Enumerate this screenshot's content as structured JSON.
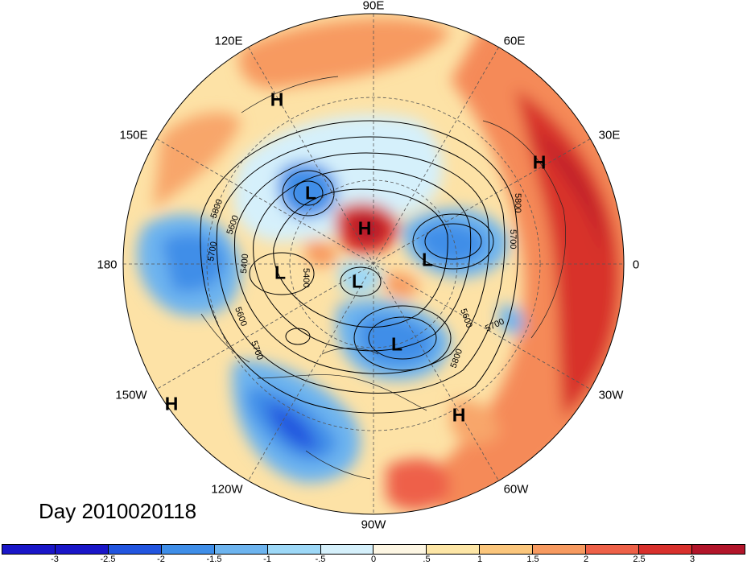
{
  "title": "Day 2010020118",
  "longitude_labels": {
    "top": "90E",
    "top_left": "120E",
    "top_right": "60E",
    "upper_left": "150E",
    "upper_right": "30E",
    "left": "180",
    "right": "0",
    "lower_left": "150W",
    "lower_right": "30W",
    "bottom_left": "120W",
    "bottom_right": "60W",
    "bottom": "90W"
  },
  "pressure_centers": [
    "H",
    "H",
    "H",
    "H",
    "H",
    "L",
    "L",
    "L",
    "L",
    "L"
  ],
  "contour_labels": [
    "5800",
    "5600",
    "5700",
    "5400",
    "5600",
    "5700",
    "5800",
    "5700",
    "5600",
    "5700",
    "5800",
    "5400"
  ],
  "colorbar": {
    "ticks": [
      "-3",
      "-2.5",
      "-2",
      "-1.5",
      "-1",
      "-.5",
      "0",
      ".5",
      "1",
      "1.5",
      "2",
      "2.5",
      "3"
    ],
    "colors": [
      "#1a16c8",
      "#2255df",
      "#3f8ee8",
      "#6db4ef",
      "#9dd8f7",
      "#d5f0fb",
      "#fdf6e3",
      "#fde6a6",
      "#fbc67c",
      "#f79a60",
      "#ee6148",
      "#d8302c",
      "#b2152a"
    ]
  }
}
